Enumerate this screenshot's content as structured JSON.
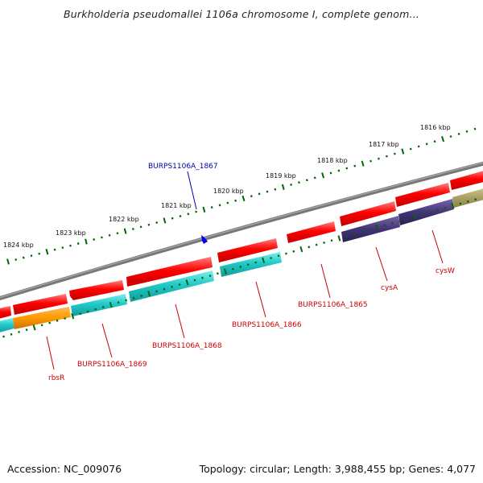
{
  "title": "Burkholderia pseudomallei 1106a chromosome I, complete genom...",
  "footer": {
    "accession": "Accession: NC_009076",
    "stats": "Topology: circular; Length: 3,988,455 bp; Genes: 4,077"
  },
  "colors": {
    "backbone": "#777777",
    "forward_cds": "#ee0000",
    "reverse_cds": "#22bbbb",
    "label_red": "#cc0000",
    "label_blue": "#0000aa",
    "ruler": "#006600",
    "orange": "#ee8800",
    "purple": "#443377",
    "olive": "#aaa066"
  },
  "kbp_ticks": [
    "1824 kbp",
    "1823 kbp",
    "1822 kbp",
    "1821 kbp",
    "1820 kbp",
    "1819 kbp",
    "1818 kbp",
    "1817 kbp",
    "1816 kbp"
  ],
  "gene_labels": {
    "burps1867": "BURPS1106A_1867",
    "rbsR": "rbsR",
    "burps1869": "BURPS1106A_1869",
    "burps1868": "BURPS1106A_1868",
    "burps1866": "BURPS1106A_1866",
    "burps1865": "BURPS1106A_1865",
    "cysA": "cysA",
    "cysW": "cysW"
  }
}
